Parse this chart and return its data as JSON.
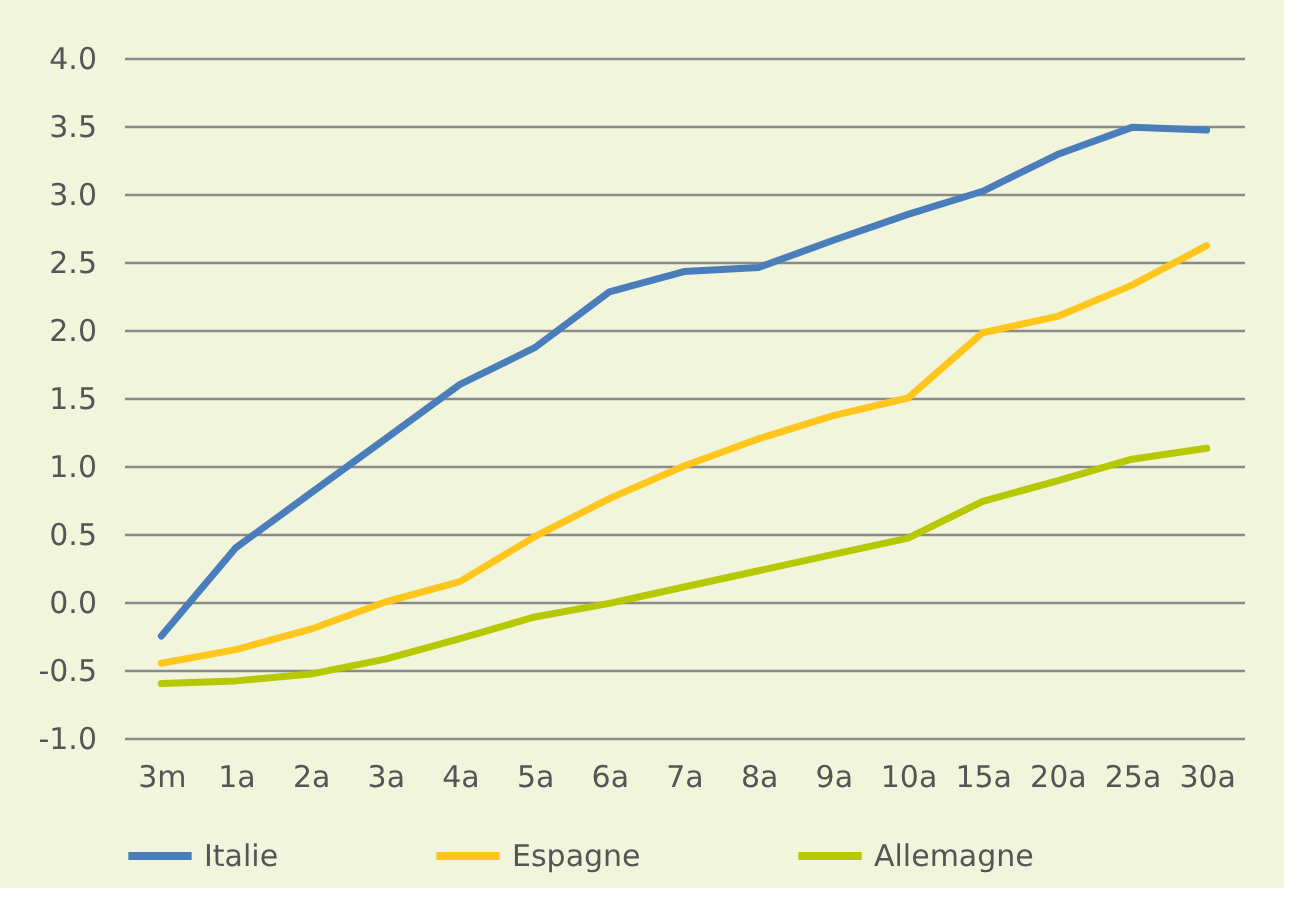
{
  "chart_data": {
    "type": "line",
    "categories": [
      "3m",
      "1a",
      "2a",
      "3a",
      "4a",
      "5a",
      "6a",
      "7a",
      "8a",
      "9a",
      "10a",
      "15a",
      "20a",
      "25a",
      "30a"
    ],
    "series": [
      {
        "name": "Italie",
        "color": "#4a7ebb",
        "values": [
          -0.25,
          0.4,
          0.8,
          1.2,
          1.6,
          1.87,
          2.28,
          2.43,
          2.46,
          2.66,
          2.85,
          3.02,
          3.29,
          3.49,
          3.47
        ]
      },
      {
        "name": "Espagne",
        "color": "#ffc61e",
        "values": [
          -0.45,
          -0.35,
          -0.2,
          0.0,
          0.15,
          0.48,
          0.76,
          1.0,
          1.2,
          1.37,
          1.5,
          1.98,
          2.1,
          2.33,
          2.62
        ]
      },
      {
        "name": "Allemagne",
        "color": "#b5c800",
        "values": [
          -0.6,
          -0.58,
          -0.53,
          -0.42,
          -0.27,
          -0.11,
          -0.01,
          0.11,
          0.23,
          0.35,
          0.47,
          0.74,
          0.89,
          1.05,
          1.13
        ]
      }
    ],
    "ylim": [
      -1.0,
      4.0
    ],
    "yticks": [
      {
        "value": -1.0,
        "label": "-1.0"
      },
      {
        "value": -0.5,
        "label": "-0.5"
      },
      {
        "value": 0,
        "label": "0.0"
      },
      {
        "value": 0.5,
        "label": "0.5"
      },
      {
        "value": 1.0,
        "label": "1.0"
      },
      {
        "value": 1.5,
        "label": "1.5"
      },
      {
        "value": 2.0,
        "label": "2.0"
      },
      {
        "value": 2.5,
        "label": "2.5"
      },
      {
        "value": 3.0,
        "label": "3.0"
      },
      {
        "value": 3.5,
        "label": "3.5"
      },
      {
        "value": 4.0,
        "label": "4.0"
      }
    ],
    "grid": "y",
    "legend": "bottom",
    "marker": "none",
    "line_style": "solid"
  }
}
